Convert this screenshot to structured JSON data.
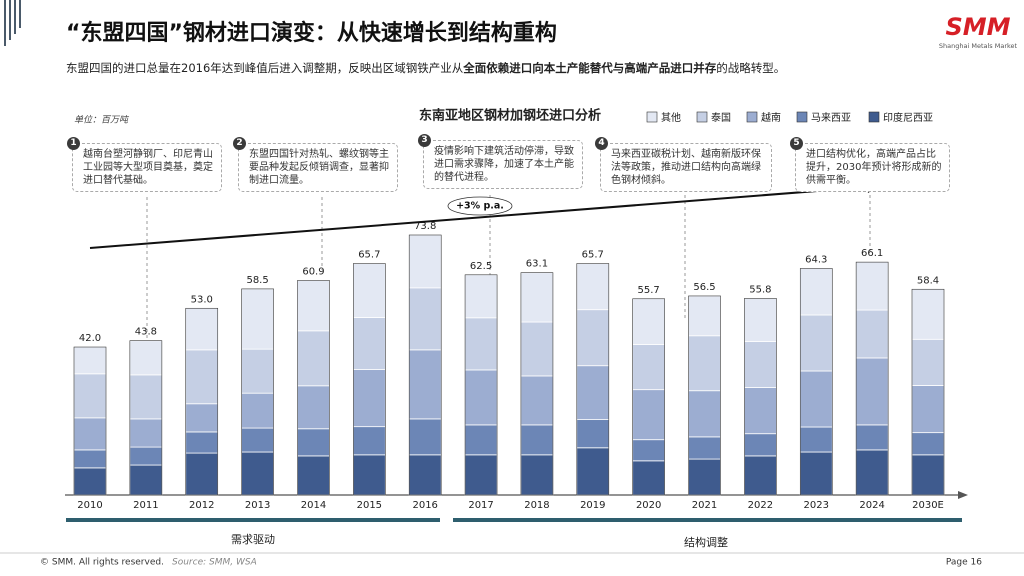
{
  "header": {
    "title": "“东盟四国”钢材进口演变：从快速增长到结构重构",
    "subtitle": [
      "东盟四国的进口总量在2016年达到峰值后进入调整期，反映出区域钢铁产业从",
      "全面依赖进口向本土产能替代与高端产品进口并存",
      "的战略转型。"
    ],
    "logo": "SMM",
    "logo_sub": "Shanghai Metals Market"
  },
  "chart_data": {
    "type": "stacked_bar",
    "title": "东南亚地区钢材加钢坯进口分析",
    "unit": "单位：百万吨",
    "categories": [
      "2010",
      "2011",
      "2012",
      "2013",
      "2014",
      "2015",
      "2016",
      "2017",
      "2018",
      "2019",
      "2020",
      "2021",
      "2022",
      "2023",
      "2024",
      "2030E"
    ],
    "series": [
      {
        "name": "印度尼西亚",
        "color": "#3f5b8e",
        "values": [
          7.7,
          8.5,
          11.9,
          12.2,
          11.1,
          11.4,
          11.4,
          11.4,
          11.4,
          13.4,
          9.7,
          10.2,
          11.1,
          12.2,
          12.8,
          11.4
        ]
      },
      {
        "name": "马来西亚",
        "color": "#6c86b6",
        "values": [
          5.1,
          5.1,
          6.0,
          6.8,
          7.7,
          8.0,
          10.2,
          8.5,
          8.5,
          8.0,
          6.0,
          6.3,
          6.3,
          7.1,
          7.1,
          6.3
        ]
      },
      {
        "name": "越南",
        "color": "#9cadd1",
        "values": [
          9.1,
          8.0,
          8.0,
          9.9,
          12.2,
          16.2,
          19.6,
          15.6,
          13.9,
          15.3,
          14.2,
          13.1,
          13.1,
          15.9,
          19.0,
          13.4
        ]
      },
      {
        "name": "泰国",
        "color": "#c5cfe4",
        "values": [
          12.5,
          12.5,
          15.3,
          12.5,
          15.6,
          14.8,
          17.6,
          14.8,
          15.3,
          15.9,
          12.8,
          15.6,
          13.1,
          15.9,
          13.6,
          13.1
        ]
      },
      {
        "name": "其他",
        "color": "#e3e8f3",
        "values": [
          7.6,
          9.7,
          11.8,
          17.1,
          14.3,
          15.3,
          15.0,
          12.2,
          14.0,
          13.1,
          13.0,
          11.3,
          12.2,
          13.2,
          13.6,
          14.2
        ]
      }
    ],
    "totals": [
      42,
      43.8,
      53,
      58.5,
      60.9,
      65.7,
      73.8,
      62.5,
      63.1,
      65.7,
      55.7,
      56.5,
      55.8,
      64.3,
      66.1,
      58.4
    ],
    "total_labels": [
      "42.0",
      "43.8",
      "53.0",
      "58.5",
      "60.9",
      "65.7",
      "73.8",
      "62.5",
      "63.1",
      "65.7",
      "55.7",
      "56.5",
      "55.8",
      "64.3",
      "66.1",
      "58.4"
    ],
    "trend_label": "+3% p.a.",
    "phases": [
      "需求驱动",
      "结构调整"
    ],
    "annotations": [
      {
        "number": "1",
        "text": "越南台塑河静钢厂、印尼青山工业园等大型项目奠基，奠定进口替代基础。"
      },
      {
        "number": "2",
        "text": "东盟四国针对热轧、螺纹钢等主要品种发起反倾销调查，显著抑制进口流量。"
      },
      {
        "number": "3",
        "text": "疫情影响下建筑活动停滞，导致进口需求骤降，加速了本土产能的替代进程。"
      },
      {
        "number": "4",
        "text": "马来西亚碳税计划、越南新版环保法等政策，推动进口结构向高端绿色钢材倾斜。"
      },
      {
        "number": "5",
        "text": "进口结构优化，高端产品占比提升，2030年预计将形成新的供需平衡。"
      }
    ]
  },
  "footer": {
    "copyright": "© SMM. All rights reserved.",
    "source": "Source:  SMM,  WSA",
    "page": "Page 16"
  }
}
